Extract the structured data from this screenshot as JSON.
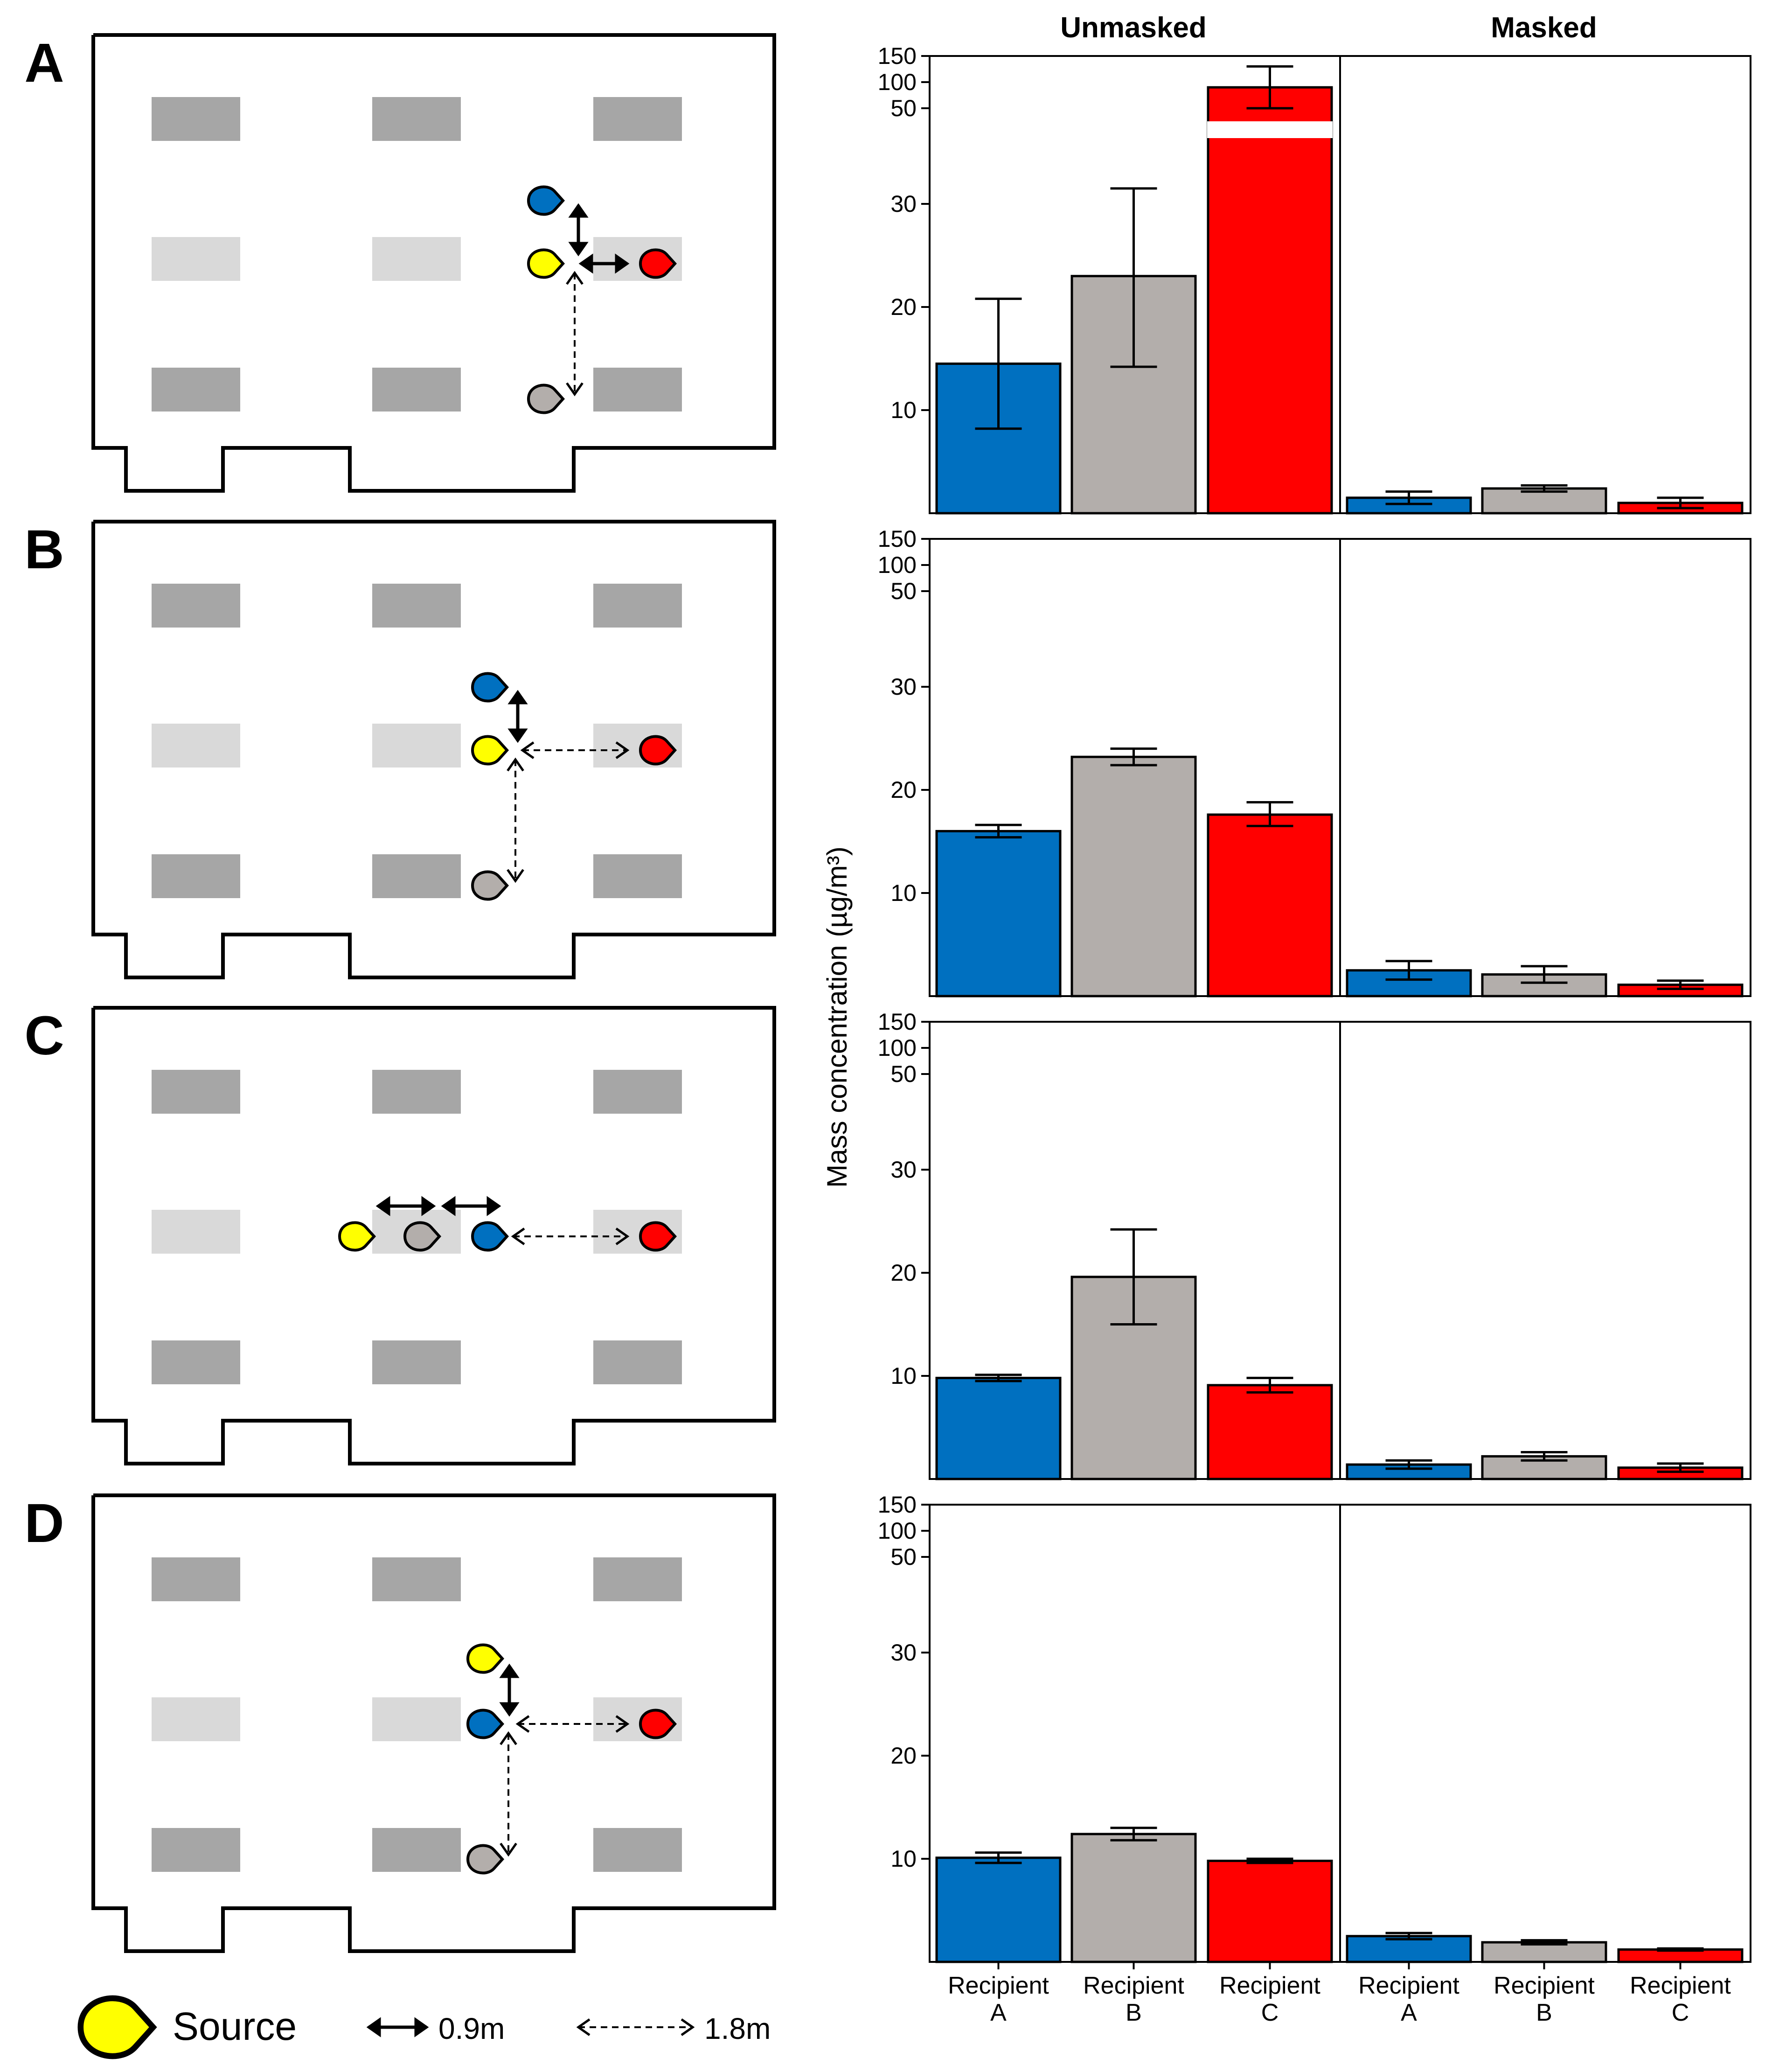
{
  "facets": [
    "Unmasked",
    "Masked"
  ],
  "categories": [
    [
      "Recipient",
      "A"
    ],
    [
      "Recipient",
      "B"
    ],
    [
      "Recipient",
      "C"
    ],
    [
      "Recipient",
      "A"
    ],
    [
      "Recipient",
      "B"
    ],
    [
      "Recipient",
      "C"
    ]
  ],
  "y_ticks": [
    "10",
    "20",
    "30",
    "50",
    "100",
    "150"
  ],
  "ylabel": "Mass concentration (µg/m³)",
  "colors": {
    "A": "#0070c0",
    "B": "#b3aeab",
    "C": "#ff0000",
    "source": "#ffff00",
    "seat_dark": "#a6a6a6",
    "seat_light": "#d9d9d9"
  },
  "legend": {
    "source": "Source",
    "solid": "0.9m",
    "dashed": "1.8m"
  },
  "panels": [
    {
      "label": "A",
      "scenario": "source-center",
      "unmasked": [
        [
          14.5,
          8.2,
          20.8
        ],
        [
          23,
          14.2,
          31.5
        ],
        [
          90,
          50,
          130
        ]
      ],
      "masked": [
        [
          1.5,
          0.9,
          2.1
        ],
        [
          2.4,
          2.1,
          2.7
        ],
        [
          1.0,
          0.5,
          1.5
        ]
      ]
    },
    {
      "label": "B",
      "scenario": "source-center-far",
      "unmasked": [
        [
          16.0,
          15.4,
          16.6
        ],
        [
          23.2,
          22.4,
          24.0
        ],
        [
          17.6,
          16.5,
          18.8
        ]
      ],
      "masked": [
        [
          2.5,
          1.6,
          3.4
        ],
        [
          2.1,
          1.3,
          2.9
        ],
        [
          1.1,
          0.7,
          1.5
        ]
      ]
    },
    {
      "label": "C",
      "scenario": "row",
      "unmasked": [
        [
          9.8,
          9.5,
          10.1
        ],
        [
          19.6,
          15.0,
          24.2
        ],
        [
          9.1,
          8.4,
          9.8
        ]
      ],
      "masked": [
        [
          1.4,
          1.0,
          1.8
        ],
        [
          2.2,
          1.8,
          2.6
        ],
        [
          1.1,
          0.7,
          1.5
        ]
      ]
    },
    {
      "label": "D",
      "scenario": "source-front",
      "unmasked": [
        [
          10.1,
          9.6,
          10.6
        ],
        [
          12.4,
          11.8,
          13.0
        ],
        [
          9.8,
          9.6,
          10.0
        ]
      ],
      "masked": [
        [
          2.5,
          2.2,
          2.8
        ],
        [
          1.9,
          1.7,
          2.1
        ],
        [
          1.2,
          1.1,
          1.3
        ]
      ]
    }
  ],
  "chart_data": {
    "type": "bar",
    "title": "",
    "xlabel": "",
    "ylabel": "Mass concentration (µg/m³)",
    "y_axis": "piecewise linear 0-44, compressed break 50-150",
    "facets": [
      "Unmasked",
      "Masked"
    ],
    "rows": [
      "A",
      "B",
      "C",
      "D"
    ],
    "categories": [
      "Recipient A",
      "Recipient B",
      "Recipient C"
    ],
    "note": "values are [mean, lower error, upper error] per recipient"
  }
}
